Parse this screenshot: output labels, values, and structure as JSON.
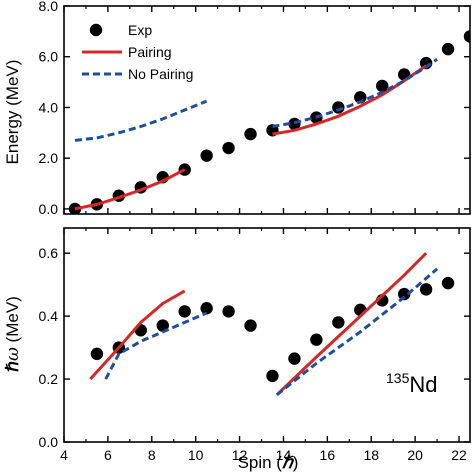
{
  "chart_data": [
    {
      "type": "scatter",
      "panel": "top",
      "ylabel": "Energy (MeV)",
      "xlim": [
        4,
        22.5
      ],
      "ylim": [
        -0.2,
        8.0
      ],
      "x_ticks": [
        "4",
        "6",
        "8",
        "10",
        "12",
        "14",
        "16",
        "18",
        "20",
        "22"
      ],
      "y_ticks": [
        "0.0",
        "2.0",
        "4.0",
        "6.0",
        "8.0"
      ],
      "legend": {
        "placement": "top-left",
        "entries": [
          "Exp",
          "Pairing",
          "No Pairing"
        ]
      },
      "series": [
        {
          "name": "Exp",
          "style": "marker",
          "color": "#000000",
          "points": [
            [
              4.5,
              0.0
            ],
            [
              5.5,
              0.18
            ],
            [
              6.5,
              0.52
            ],
            [
              7.5,
              0.85
            ],
            [
              8.5,
              1.25
            ],
            [
              9.5,
              1.55
            ],
            [
              10.5,
              2.1
            ],
            [
              11.5,
              2.4
            ],
            [
              12.5,
              2.95
            ],
            [
              13.5,
              3.1
            ],
            [
              14.5,
              3.35
            ],
            [
              15.5,
              3.6
            ],
            [
              16.5,
              4.0
            ],
            [
              17.5,
              4.4
            ],
            [
              18.5,
              4.85
            ],
            [
              19.5,
              5.3
            ],
            [
              20.5,
              5.75
            ],
            [
              21.5,
              6.3
            ],
            [
              22.5,
              6.8
            ]
          ]
        },
        {
          "name": "Pairing",
          "style": "solid",
          "color": "#d62728",
          "segments": [
            [
              [
                4.5,
                0.0
              ],
              [
                5.5,
                0.18
              ],
              [
                6.5,
                0.45
              ],
              [
                7.5,
                0.75
              ],
              [
                8.5,
                1.1
              ],
              [
                9.5,
                1.55
              ]
            ],
            [
              [
                13.5,
                2.95
              ],
              [
                14.5,
                3.1
              ],
              [
                15.5,
                3.35
              ],
              [
                16.5,
                3.65
              ],
              [
                17.5,
                4.05
              ],
              [
                18.5,
                4.5
              ],
              [
                19.5,
                5.05
              ],
              [
                20.5,
                5.65
              ]
            ]
          ]
        },
        {
          "name": "No Pairing",
          "style": "dashed",
          "color": "#1f4e9e",
          "segments": [
            [
              [
                4.5,
                2.7
              ],
              [
                5.5,
                2.8
              ],
              [
                6.5,
                3.0
              ],
              [
                7.5,
                3.25
              ],
              [
                8.5,
                3.55
              ],
              [
                9.5,
                3.9
              ],
              [
                10.5,
                4.25
              ]
            ],
            [
              [
                13.5,
                3.25
              ],
              [
                14.5,
                3.4
              ],
              [
                15.5,
                3.62
              ],
              [
                16.5,
                3.9
              ],
              [
                17.5,
                4.22
              ],
              [
                18.5,
                4.6
              ],
              [
                19.5,
                5.05
              ],
              [
                20.5,
                5.6
              ],
              [
                21,
                5.9
              ]
            ]
          ]
        }
      ]
    },
    {
      "type": "scatter",
      "panel": "bottom",
      "xlabel_parts": [
        "Spin (",
        "ℏ",
        ")"
      ],
      "ylabel_parts": [
        "ℏ",
        "ω",
        " (MeV)"
      ],
      "xlim": [
        4,
        22.5
      ],
      "ylim": [
        0.0,
        0.68
      ],
      "x_ticks": [
        "4",
        "6",
        "8",
        "10",
        "12",
        "14",
        "16",
        "18",
        "20",
        "22"
      ],
      "y_ticks": [
        "0.0",
        "0.2",
        "0.4",
        "0.6"
      ],
      "annotation": {
        "superscript": "135",
        "text": "Nd"
      },
      "series": [
        {
          "name": "Exp",
          "style": "marker",
          "color": "#000000",
          "points": [
            [
              5.5,
              0.28
            ],
            [
              6.5,
              0.3
            ],
            [
              7.5,
              0.355
            ],
            [
              8.5,
              0.37
            ],
            [
              9.5,
              0.415
            ],
            [
              10.5,
              0.425
            ],
            [
              11.5,
              0.415
            ],
            [
              12.5,
              0.37
            ],
            [
              13.5,
              0.21
            ],
            [
              14.5,
              0.265
            ],
            [
              15.5,
              0.325
            ],
            [
              16.5,
              0.38
            ],
            [
              17.5,
              0.42
            ],
            [
              18.5,
              0.45
            ],
            [
              19.5,
              0.47
            ],
            [
              20.5,
              0.485
            ],
            [
              21.5,
              0.505
            ]
          ]
        },
        {
          "name": "Pairing",
          "style": "solid",
          "color": "#d62728",
          "segments": [
            [
              [
                5.2,
                0.2
              ],
              [
                6.5,
                0.3
              ],
              [
                7.5,
                0.38
              ],
              [
                8.5,
                0.44
              ],
              [
                9.5,
                0.48
              ]
            ],
            [
              [
                13.7,
                0.15
              ],
              [
                15.5,
                0.27
              ],
              [
                17.5,
                0.4
              ],
              [
                19.5,
                0.53
              ],
              [
                20.5,
                0.6
              ]
            ]
          ]
        },
        {
          "name": "No Pairing",
          "style": "dashed",
          "color": "#1f4e9e",
          "segments": [
            [
              [
                5.9,
                0.2
              ],
              [
                6.5,
                0.28
              ],
              [
                7.5,
                0.32
              ],
              [
                8.5,
                0.35
              ],
              [
                9.5,
                0.38
              ],
              [
                10.5,
                0.41
              ]
            ],
            [
              [
                13.7,
                0.15
              ],
              [
                15.5,
                0.25
              ],
              [
                17.5,
                0.35
              ],
              [
                19.5,
                0.46
              ],
              [
                21.0,
                0.55
              ]
            ]
          ]
        }
      ]
    }
  ]
}
